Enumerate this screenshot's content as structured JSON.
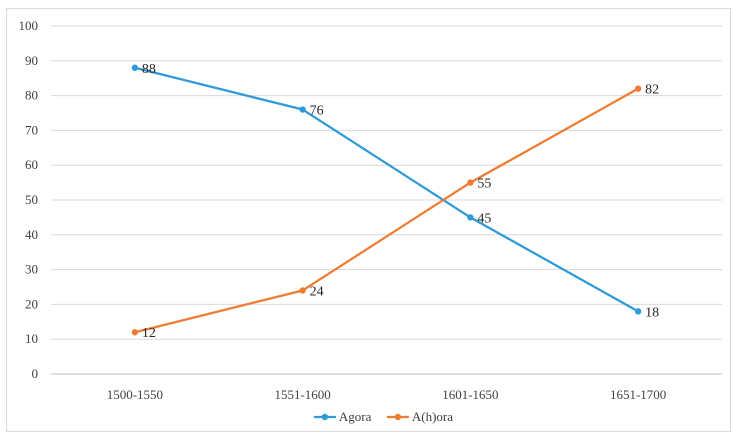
{
  "chart_data": {
    "type": "line",
    "title": "",
    "xlabel": "",
    "ylabel": "",
    "categories": [
      "1500-1550",
      "1551-1600",
      "1601-1650",
      "1651-1700"
    ],
    "ylim": [
      0,
      100
    ],
    "yticks": [
      0,
      10,
      20,
      30,
      40,
      50,
      60,
      70,
      80,
      90,
      100
    ],
    "grid": "horizontal",
    "legend_position": "bottom",
    "series": [
      {
        "name": "Agora",
        "color": "#2e9bd6",
        "values": [
          88,
          76,
          45,
          18
        ]
      },
      {
        "name": "A(h)ora",
        "color": "#ef7d31",
        "values": [
          12,
          24,
          55,
          82
        ]
      }
    ]
  }
}
